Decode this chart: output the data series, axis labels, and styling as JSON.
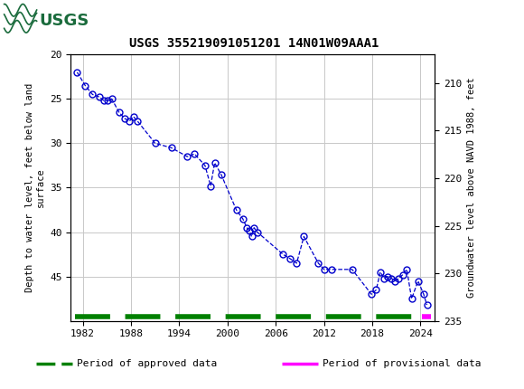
{
  "title": "USGS 355219091051201 14N01W09AAA1",
  "ylabel_left": "Depth to water level, feet below land\nsurface",
  "ylabel_right": "Groundwater level above NAVD 1988, feet",
  "ylim_left": [
    20,
    50
  ],
  "ylim_right_top": 235,
  "ylim_right_bottom": 207,
  "xlim": [
    1980.5,
    2025.8
  ],
  "xticks": [
    1982,
    1988,
    1994,
    2000,
    2006,
    2012,
    2018,
    2024
  ],
  "yticks_left": [
    20,
    25,
    30,
    35,
    40,
    45
  ],
  "yticks_right": [
    235,
    230,
    225,
    220,
    215,
    210
  ],
  "data_x": [
    1981.3,
    1982.3,
    1983.2,
    1984.1,
    1984.6,
    1985.1,
    1985.6,
    1986.5,
    1987.2,
    1987.8,
    1988.3,
    1988.8,
    1991.0,
    1993.0,
    1995.0,
    1995.9,
    1997.2,
    1997.9,
    1998.4,
    1999.2,
    2001.1,
    2001.9,
    2002.4,
    2002.7,
    2003.0,
    2003.3,
    2003.7,
    2006.9,
    2007.8,
    2008.6,
    2009.5,
    2011.3,
    2012.0,
    2013.0,
    2015.5,
    2017.9,
    2018.5,
    2019.0,
    2019.5,
    2019.9,
    2020.4,
    2020.8,
    2021.3,
    2021.8,
    2022.3,
    2022.9,
    2023.7,
    2024.4,
    2024.8
  ],
  "data_y": [
    22.0,
    23.5,
    24.5,
    24.8,
    25.2,
    25.2,
    25.0,
    26.5,
    27.2,
    27.5,
    27.0,
    27.5,
    30.0,
    30.5,
    31.5,
    31.2,
    32.5,
    34.8,
    32.2,
    33.5,
    37.5,
    38.5,
    39.5,
    39.8,
    40.5,
    39.5,
    40.0,
    42.5,
    43.0,
    43.5,
    40.5,
    43.5,
    44.2,
    44.2,
    44.2,
    47.0,
    46.5,
    44.5,
    45.2,
    45.0,
    45.2,
    45.5,
    45.2,
    44.8,
    44.2,
    47.5,
    45.5,
    47.0,
    48.2
  ],
  "line_color": "#0000cc",
  "marker_color": "#0000cc",
  "line_style": "--",
  "marker_style": "o",
  "marker_size": 5,
  "grid_color": "#c8c8c8",
  "background_color": "#ffffff",
  "header_color": "#1a6b3c",
  "approved_color": "#008000",
  "provisional_color": "#ff00ff",
  "legend_approved": "Period of approved data",
  "legend_provisional": "Period of provisional data",
  "bar_y": 49.5,
  "usgs_text": "USGS"
}
